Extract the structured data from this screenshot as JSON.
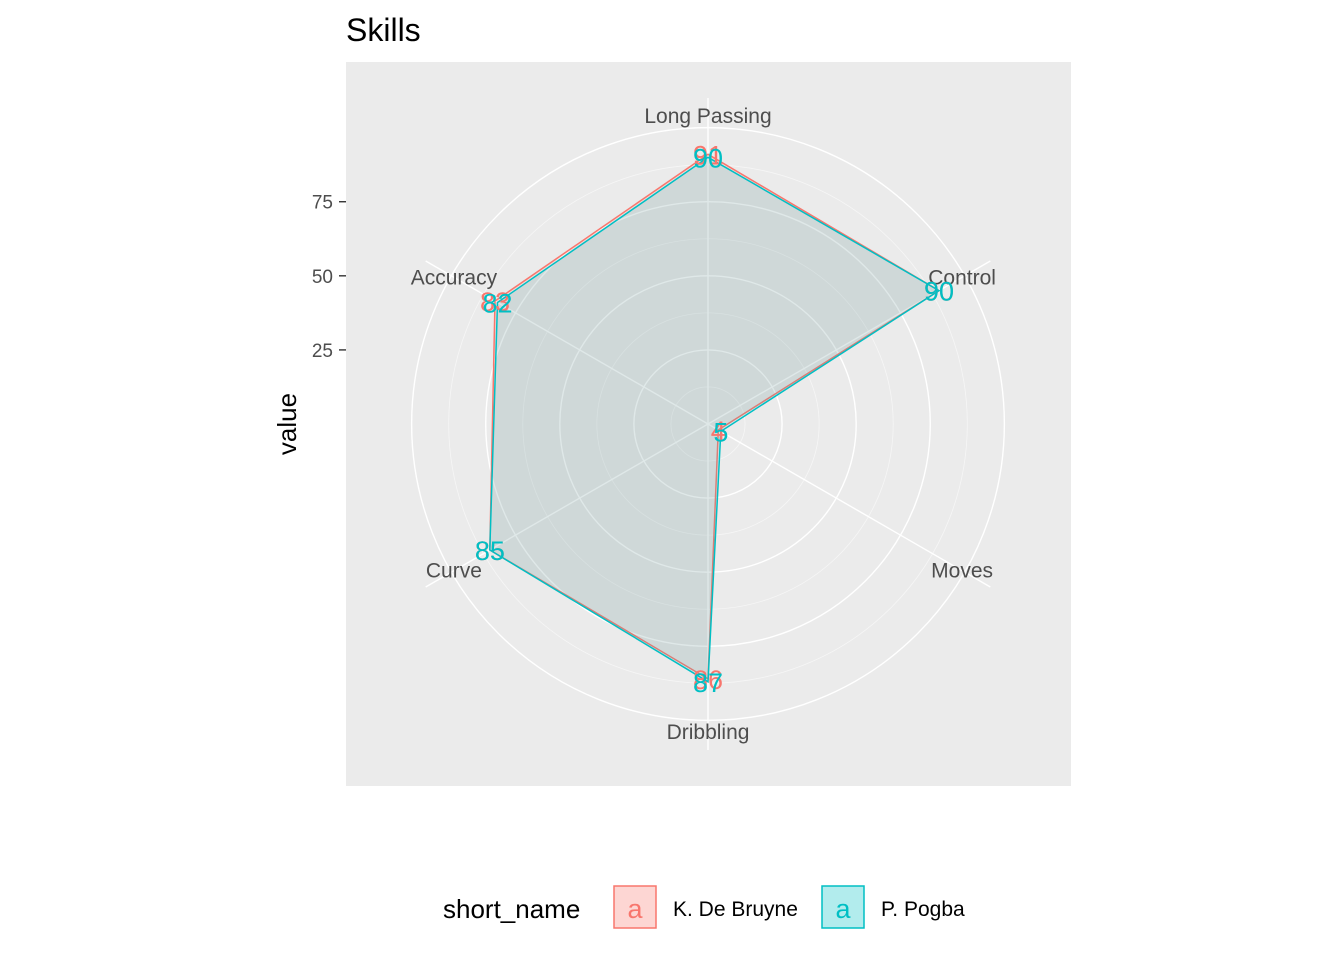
{
  "chart_data": {
    "type": "radar",
    "title": "Skills",
    "ylabel": "value",
    "yticks": [
      "25",
      "50",
      "75"
    ],
    "ytick_values": [
      25,
      50,
      75
    ],
    "categories": [
      "Long Passing",
      "Control",
      "Moves",
      "Dribbling",
      "Curve",
      "Accuracy"
    ],
    "rlim": [
      0,
      110
    ],
    "grid": true,
    "series": [
      {
        "name": "K. De Bruyne",
        "values": [
          91,
          90,
          4,
          86,
          85,
          83
        ],
        "labels": [
          "91",
          "90",
          "4",
          "86",
          "85",
          "83"
        ]
      },
      {
        "name": "P. Pogba",
        "values": [
          90,
          90,
          5,
          87,
          85,
          82
        ],
        "labels": [
          "90",
          "90",
          "5",
          "87",
          "85",
          "82"
        ]
      }
    ],
    "legend": {
      "title": "short_name",
      "position": "bottom",
      "key_glyph": "a"
    },
    "colors": {
      "panel": "#EBEBEB",
      "grid": "#FFFFFF",
      "K. De Bruyne": "#F8766D",
      "P. Pogba": "#00BFC4",
      "fill": "#A3C9C8"
    }
  }
}
